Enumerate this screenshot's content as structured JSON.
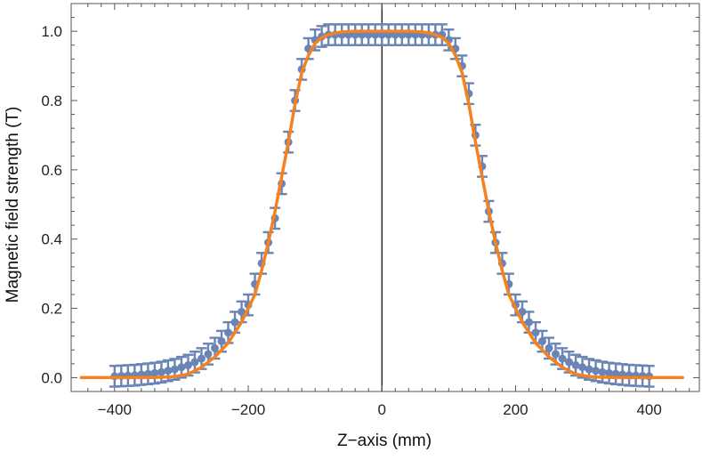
{
  "chart_data": {
    "type": "scatter",
    "xlabel": "Z−axis (mm)",
    "ylabel": "Magnetic field strength (T)",
    "xlim": [
      -465,
      475
    ],
    "ylim": [
      -0.04,
      1.08
    ],
    "x_ticks": [
      -400,
      -200,
      0,
      200,
      400
    ],
    "x_tick_labels": [
      "−400",
      "−200",
      "0",
      "200",
      "400"
    ],
    "y_ticks": [
      0.0,
      0.2,
      0.4,
      0.6,
      0.8,
      1.0
    ],
    "y_tick_labels": [
      "0.0",
      "0.2",
      "0.4",
      "0.6",
      "0.8",
      "1.0"
    ],
    "grid": false,
    "frame": "box",
    "zero_line": "vertical at x = 0",
    "colors": {
      "points": "#6a85b5",
      "fit": "#f5821f",
      "axes": "#555555",
      "zero_line": "#000000"
    },
    "series": [
      {
        "type": "scatter-errorbars",
        "x": [
          -400,
          -390,
          -380,
          -370,
          -360,
          -350,
          -340,
          -330,
          -320,
          -310,
          -300,
          -290,
          -280,
          -270,
          -260,
          -250,
          -240,
          -230,
          -220,
          -210,
          -200,
          -190,
          -180,
          -170,
          -160,
          -150,
          -140,
          -130,
          -120,
          -110,
          -100,
          -90,
          -80,
          -70,
          -60,
          -50,
          -40,
          -30,
          -20,
          -10,
          0,
          10,
          20,
          30,
          40,
          50,
          60,
          70,
          80,
          90,
          100,
          110,
          120,
          130,
          140,
          150,
          160,
          170,
          180,
          190,
          200,
          210,
          220,
          230,
          240,
          250,
          260,
          270,
          280,
          290,
          300,
          310,
          320,
          330,
          340,
          350,
          360,
          370,
          380,
          390,
          400
        ],
        "y": [
          0.004,
          0.005,
          0.006,
          0.007,
          0.009,
          0.011,
          0.013,
          0.016,
          0.02,
          0.024,
          0.03,
          0.036,
          0.045,
          0.055,
          0.068,
          0.085,
          0.105,
          0.13,
          0.16,
          0.19,
          0.21,
          0.27,
          0.33,
          0.39,
          0.46,
          0.56,
          0.68,
          0.8,
          0.89,
          0.95,
          0.975,
          0.985,
          0.99,
          0.99,
          0.99,
          0.99,
          0.99,
          0.99,
          0.99,
          0.99,
          0.99,
          0.99,
          0.99,
          0.99,
          0.99,
          0.99,
          0.99,
          0.99,
          0.99,
          0.99,
          0.975,
          0.95,
          0.9,
          0.82,
          0.7,
          0.61,
          0.48,
          0.39,
          0.33,
          0.27,
          0.21,
          0.19,
          0.16,
          0.13,
          0.105,
          0.085,
          0.068,
          0.055,
          0.045,
          0.036,
          0.03,
          0.024,
          0.02,
          0.016,
          0.013,
          0.011,
          0.009,
          0.007,
          0.006,
          0.005,
          0.004
        ],
        "error": 0.03
      },
      {
        "type": "line",
        "x": [
          -450,
          -430,
          -410,
          -390,
          -370,
          -350,
          -330,
          -310,
          -290,
          -270,
          -250,
          -230,
          -210,
          -200,
          -190,
          -180,
          -170,
          -160,
          -150,
          -140,
          -130,
          -120,
          -110,
          -100,
          -90,
          -80,
          -70,
          -60,
          -40,
          -20,
          0,
          20,
          40,
          60,
          70,
          80,
          90,
          100,
          110,
          120,
          130,
          140,
          150,
          160,
          170,
          180,
          190,
          200,
          210,
          230,
          250,
          270,
          290,
          310,
          330,
          350,
          370,
          390,
          410,
          430,
          450
        ],
        "y": [
          0.0,
          0.0,
          0.0,
          0.0,
          0.0,
          0.0,
          0.001,
          0.003,
          0.01,
          0.03,
          0.06,
          0.1,
          0.16,
          0.2,
          0.24,
          0.31,
          0.39,
          0.48,
          0.58,
          0.68,
          0.79,
          0.88,
          0.93,
          0.965,
          0.982,
          0.99,
          0.995,
          0.998,
          1.0,
          1.0,
          1.0,
          1.0,
          1.0,
          0.998,
          0.995,
          0.99,
          0.982,
          0.965,
          0.93,
          0.88,
          0.79,
          0.68,
          0.58,
          0.48,
          0.39,
          0.31,
          0.24,
          0.2,
          0.16,
          0.1,
          0.06,
          0.03,
          0.01,
          0.003,
          0.001,
          0.0,
          0.0,
          0.0,
          0.0,
          0.0,
          0.0
        ]
      }
    ]
  }
}
